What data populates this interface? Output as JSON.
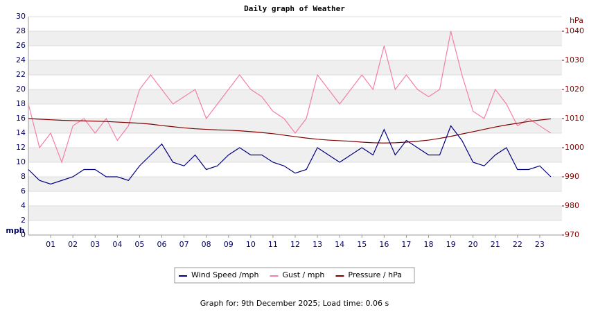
{
  "chart_data": {
    "type": "line",
    "title": "Daily graph of Weather",
    "y_label": "mph",
    "y2_label": "hPa",
    "x": [
      0,
      0.5,
      1,
      1.5,
      2,
      2.5,
      3,
      3.5,
      4,
      4.5,
      5,
      5.5,
      6,
      6.5,
      7,
      7.5,
      8,
      8.5,
      9,
      9.5,
      10,
      10.5,
      11,
      11.5,
      12,
      12.5,
      13,
      13.5,
      14,
      14.5,
      15,
      15.5,
      16,
      16.5,
      17,
      17.5,
      18,
      18.5,
      19,
      19.5,
      20,
      20.5,
      21,
      21.5,
      22,
      22.5,
      23,
      23.5
    ],
    "xlim": [
      0,
      24
    ],
    "xticks": [
      {
        "value": 1,
        "label": "01"
      },
      {
        "value": 2,
        "label": "02"
      },
      {
        "value": 3,
        "label": "03"
      },
      {
        "value": 4,
        "label": "04"
      },
      {
        "value": 5,
        "label": "05"
      },
      {
        "value": 6,
        "label": "06"
      },
      {
        "value": 7,
        "label": "07"
      },
      {
        "value": 8,
        "label": "08"
      },
      {
        "value": 9,
        "label": "09"
      },
      10,
      11,
      12,
      13,
      14,
      15,
      16,
      17,
      18,
      19,
      20,
      21,
      22,
      23
    ],
    "ylim": [
      0,
      30
    ],
    "yticks": [
      0,
      2,
      4,
      6,
      8,
      10,
      12,
      14,
      16,
      18,
      20,
      22,
      24,
      26,
      28,
      30
    ],
    "y2lim": [
      970,
      1045
    ],
    "y2ticks": [
      970,
      980,
      990,
      1000,
      1010,
      1020,
      1030,
      1040
    ],
    "grid": true,
    "legend": "bottom",
    "series": [
      {
        "name": "Gust / mph",
        "color": "#f57ea6",
        "values": [
          18,
          12,
          14,
          10,
          15,
          16,
          14,
          16,
          13,
          15,
          20,
          22,
          20,
          18,
          19,
          20,
          16,
          18,
          20,
          22,
          20,
          19,
          17,
          16,
          14,
          16,
          22,
          20,
          18,
          20,
          22,
          20,
          26,
          20,
          22,
          20,
          19,
          20,
          28,
          22,
          17,
          16,
          20,
          18,
          15,
          16,
          15,
          14
        ]
      },
      {
        "name": "Pressure / hPa",
        "color": "#800000",
        "axis": "y2",
        "values": [
          1010,
          1009.8,
          1009.6,
          1009.4,
          1009.3,
          1009.2,
          1009.1,
          1009,
          1008.8,
          1008.6,
          1008.4,
          1008.1,
          1007.6,
          1007.2,
          1006.8,
          1006.5,
          1006.3,
          1006.1,
          1006,
          1005.8,
          1005.5,
          1005.2,
          1004.8,
          1004.3,
          1003.8,
          1003.3,
          1002.9,
          1002.6,
          1002.4,
          1002.2,
          1001.9,
          1001.7,
          1001.6,
          1001.7,
          1001.9,
          1002.2,
          1002.6,
          1003.2,
          1003.9,
          1004.7,
          1005.5,
          1006.3,
          1007.1,
          1007.8,
          1008.4,
          1009,
          1009.5,
          1009.9
        ]
      },
      {
        "name": "Wind Speed /mph",
        "color": "#000080",
        "values": [
          9,
          7.5,
          7,
          7.5,
          8,
          9,
          9,
          8,
          8,
          7.5,
          9.5,
          11,
          12.5,
          10,
          9.5,
          11,
          9,
          9.5,
          11,
          12,
          11,
          11,
          10,
          9.5,
          8.5,
          9,
          12,
          11,
          10,
          11,
          12,
          11,
          14.5,
          11,
          13,
          12,
          11,
          11,
          15,
          13,
          10,
          9.5,
          11,
          12,
          9,
          9,
          9.5,
          8
        ]
      }
    ],
    "legend_order": [
      2,
      0,
      1
    ],
    "footer": "Graph for: 9th December 2025; Load time: 0.06 s"
  }
}
